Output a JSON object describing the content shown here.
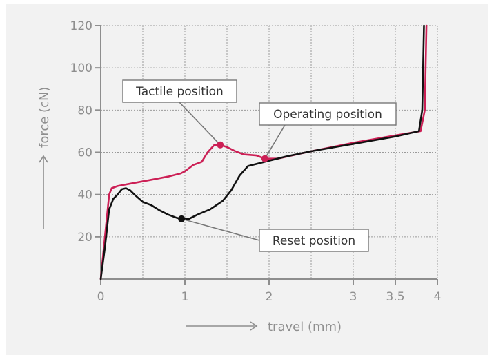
{
  "colors": {
    "tactile_curve": "#cc1f55",
    "reset_curve": "#111111",
    "grid": "#9a9a9a",
    "axis": "#8e8e8e",
    "background": "#f2f2f2"
  },
  "chart_data": {
    "type": "line",
    "xlabel": "travel (mm)",
    "ylabel": "force (cN)",
    "xlim": [
      0,
      4
    ],
    "ylim": [
      0,
      120
    ],
    "x_ticks": [
      {
        "value": 0,
        "label": "0"
      },
      {
        "value": 1,
        "label": "1"
      },
      {
        "value": 2,
        "label": "2"
      },
      {
        "value": 3,
        "label": "3"
      },
      {
        "value": 3.5,
        "label": "3.5"
      },
      {
        "value": 4,
        "label": "4"
      }
    ],
    "y_ticks": [
      {
        "value": 20,
        "label": "20"
      },
      {
        "value": 40,
        "label": "40"
      },
      {
        "value": 60,
        "label": "60"
      },
      {
        "value": 80,
        "label": "80"
      },
      {
        "value": 100,
        "label": "100"
      },
      {
        "value": 120,
        "label": "120"
      }
    ],
    "x_grid": [
      0.5,
      1,
      1.5,
      2,
      2.5,
      3,
      3.5,
      4
    ],
    "y_grid": [
      20,
      40,
      60,
      80,
      100,
      120
    ],
    "series": [
      {
        "color": "#cc1f55",
        "x": [
          0,
          0.05,
          0.1,
          0.13,
          0.2,
          0.4,
          0.6,
          0.8,
          0.95,
          1.0,
          1.1,
          1.2,
          1.27,
          1.35,
          1.42,
          1.5,
          1.6,
          1.7,
          1.85,
          1.95,
          2.1,
          2.5,
          3.0,
          3.5,
          3.8,
          3.85,
          3.87
        ],
        "y": [
          0,
          20,
          40,
          43,
          44,
          45.5,
          47,
          48.5,
          50,
          51,
          54,
          55.5,
          60,
          63.5,
          63.5,
          62.5,
          60.5,
          59,
          58.5,
          57,
          57,
          60.5,
          64.5,
          68,
          70,
          80,
          120
        ]
      },
      {
        "color": "#111111",
        "x": [
          0,
          0.05,
          0.1,
          0.15,
          0.2,
          0.25,
          0.3,
          0.35,
          0.4,
          0.5,
          0.6,
          0.7,
          0.8,
          0.9,
          0.96,
          1.05,
          1.15,
          1.3,
          1.45,
          1.55,
          1.65,
          1.75,
          1.95,
          2.2,
          2.5,
          3.0,
          3.5,
          3.78,
          3.82,
          3.84
        ],
        "y": [
          0,
          15,
          33,
          38,
          40,
          42.5,
          43,
          42,
          40,
          36.5,
          35,
          32.5,
          30.5,
          29,
          28.5,
          28.5,
          30.5,
          33,
          37,
          42,
          49,
          53.5,
          55.5,
          58,
          60.5,
          64,
          67.5,
          70,
          80,
          120
        ]
      }
    ],
    "annotations": [
      {
        "label": "Tactile position",
        "point": [
          1.42,
          63.5
        ],
        "point_color": "#cc1f55"
      },
      {
        "label": "Operating position",
        "point": [
          1.95,
          57
        ],
        "point_color": "#cc1f55"
      },
      {
        "label": "Reset position",
        "point": [
          0.96,
          28.5
        ],
        "point_color": "#111111"
      }
    ]
  }
}
